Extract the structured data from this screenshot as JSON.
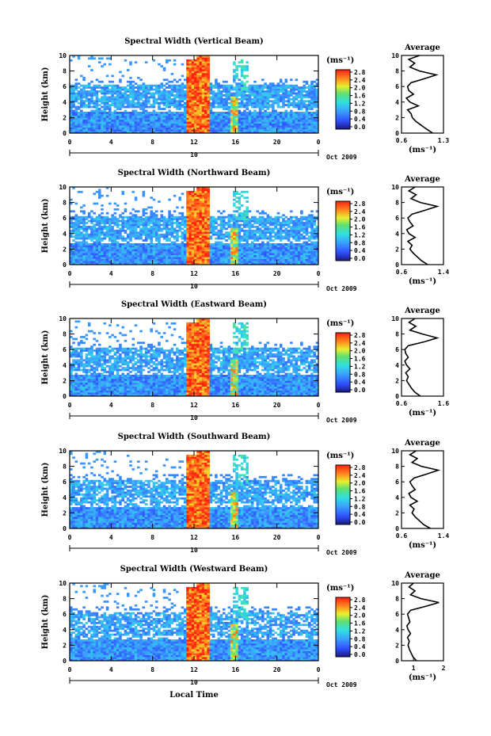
{
  "chart_data": [
    {
      "type": "heatmap",
      "title": "Spectral Width (Vertical Beam)",
      "ylabel": "Height (km)",
      "x_ticks": [
        "0",
        "4",
        "8",
        "12",
        "16",
        "20",
        "0"
      ],
      "y_ticks": [
        "0",
        "2",
        "4",
        "6",
        "8",
        "10"
      ],
      "xlim": [
        0,
        24
      ],
      "ylim": [
        0,
        10
      ],
      "date_label": "10",
      "month_year": "Oct 2009",
      "colorbar": {
        "unit": "(ms⁻¹)",
        "ticks": [
          "0.0",
          "0.4",
          "0.8",
          "1.2",
          "1.6",
          "2.0",
          "2.4",
          "2.8"
        ],
        "range": [
          0,
          3.0
        ]
      },
      "profile": {
        "title": "Average",
        "xlabel": "(ms⁻¹)",
        "xlim": [
          0.6,
          1.3
        ],
        "x_ticks": [
          "0.6",
          "1.3"
        ],
        "heights": [
          0,
          0.5,
          1,
          1.5,
          2,
          2.5,
          3,
          3.5,
          4,
          4.5,
          5,
          5.5,
          6,
          6.5,
          7,
          7.5,
          8,
          8.5,
          9,
          9.5,
          10
        ],
        "values": [
          1.12,
          1.02,
          0.93,
          0.84,
          0.78,
          0.76,
          0.7,
          0.88,
          0.74,
          0.68,
          0.8,
          0.72,
          0.7,
          0.76,
          0.98,
          1.18,
          0.9,
          0.74,
          0.82,
          0.72,
          0.9
        ]
      }
    },
    {
      "type": "heatmap",
      "title": "Spectral Width (Northward Beam)",
      "ylabel": "Height (km)",
      "x_ticks": [
        "0",
        "4",
        "8",
        "12",
        "16",
        "20",
        "0"
      ],
      "y_ticks": [
        "0",
        "2",
        "4",
        "6",
        "8",
        "10"
      ],
      "xlim": [
        0,
        24
      ],
      "ylim": [
        0,
        10
      ],
      "date_label": "10",
      "month_year": "Oct 2009",
      "colorbar": {
        "unit": "(ms⁻¹)",
        "ticks": [
          "0.0",
          "0.4",
          "0.8",
          "1.2",
          "1.6",
          "2.0",
          "2.4",
          "2.8"
        ],
        "range": [
          0,
          3.0
        ]
      },
      "profile": {
        "title": "Average",
        "xlabel": "(ms⁻¹)",
        "xlim": [
          0.6,
          1.4
        ],
        "x_ticks": [
          "0.6",
          "1.4"
        ],
        "heights": [
          0,
          0.5,
          1,
          1.5,
          2,
          2.5,
          3,
          3.5,
          4,
          4.5,
          5,
          5.5,
          6,
          6.5,
          7,
          7.5,
          8,
          8.5,
          9,
          9.5,
          10
        ],
        "values": [
          1.1,
          0.98,
          0.9,
          0.82,
          0.76,
          0.8,
          0.72,
          0.86,
          0.74,
          0.7,
          0.82,
          0.76,
          0.72,
          0.8,
          1.05,
          1.28,
          0.96,
          0.78,
          0.88,
          0.74,
          0.86
        ]
      }
    },
    {
      "type": "heatmap",
      "title": "Spectral Width (Eastward Beam)",
      "ylabel": "Height (km)",
      "x_ticks": [
        "0",
        "4",
        "8",
        "12",
        "16",
        "20",
        "0"
      ],
      "y_ticks": [
        "0",
        "2",
        "4",
        "6",
        "8",
        "10"
      ],
      "xlim": [
        0,
        24
      ],
      "ylim": [
        0,
        10
      ],
      "date_label": "10",
      "month_year": "Oct 2009",
      "colorbar": {
        "unit": "(ms⁻¹)",
        "ticks": [
          "0.0",
          "0.4",
          "0.8",
          "1.2",
          "1.6",
          "2.0",
          "2.4",
          "2.8"
        ],
        "range": [
          0,
          3.0
        ]
      },
      "profile": {
        "title": "Average",
        "xlabel": "(ms⁻¹)",
        "xlim": [
          0.6,
          1.6
        ],
        "x_ticks": [
          "0.6",
          "1.6"
        ],
        "heights": [
          0,
          0.5,
          1,
          1.5,
          2,
          2.5,
          3,
          3.5,
          4,
          4.5,
          5,
          5.5,
          6,
          6.5,
          7,
          7.5,
          8,
          8.5,
          9,
          9.5,
          10
        ],
        "values": [
          1.05,
          0.92,
          0.84,
          0.78,
          0.72,
          0.76,
          0.7,
          0.8,
          0.72,
          0.68,
          0.76,
          0.7,
          0.68,
          0.76,
          1.15,
          1.45,
          1.1,
          0.8,
          0.94,
          0.78,
          0.92
        ]
      }
    },
    {
      "type": "heatmap",
      "title": "Spectral Width (Southward Beam)",
      "ylabel": "Height (km)",
      "x_ticks": [
        "0",
        "4",
        "8",
        "12",
        "16",
        "20",
        "0"
      ],
      "y_ticks": [
        "0",
        "2",
        "4",
        "6",
        "8",
        "10"
      ],
      "xlim": [
        0,
        24
      ],
      "ylim": [
        0,
        10
      ],
      "date_label": "10",
      "month_year": "Oct 2009",
      "colorbar": {
        "unit": "(ms⁻¹)",
        "ticks": [
          "0.0",
          "0.4",
          "0.8",
          "1.2",
          "1.6",
          "2.0",
          "2.4",
          "2.8"
        ],
        "range": [
          0,
          3.0
        ]
      },
      "profile": {
        "title": "Average",
        "xlabel": "(ms⁻¹)",
        "xlim": [
          0.6,
          1.4
        ],
        "x_ticks": [
          "0.6",
          "1.4"
        ],
        "heights": [
          0,
          0.5,
          1,
          1.5,
          2,
          2.5,
          3,
          3.5,
          4,
          4.5,
          5,
          5.5,
          6,
          6.5,
          7,
          7.5,
          8,
          8.5,
          9,
          9.5,
          10
        ],
        "values": [
          1.15,
          1.02,
          0.94,
          0.86,
          0.8,
          0.84,
          0.76,
          0.9,
          0.78,
          0.74,
          0.86,
          0.8,
          0.76,
          0.84,
          1.08,
          1.3,
          0.98,
          0.8,
          0.9,
          0.76,
          0.88
        ]
      }
    },
    {
      "type": "heatmap",
      "title": "Spectral Width (Westward Beam)",
      "ylabel": "Height (km)",
      "xlabel": "Local Time",
      "x_ticks": [
        "0",
        "4",
        "8",
        "12",
        "16",
        "20",
        "0"
      ],
      "y_ticks": [
        "0",
        "2",
        "4",
        "6",
        "8",
        "10"
      ],
      "xlim": [
        0,
        24
      ],
      "ylim": [
        0,
        10
      ],
      "date_label": "10",
      "month_year": "Oct 2009",
      "colorbar": {
        "unit": "(ms⁻¹)",
        "ticks": [
          "0.0",
          "0.4",
          "0.8",
          "1.2",
          "1.6",
          "2.0",
          "2.4",
          "2.8"
        ],
        "range": [
          0,
          3.0
        ]
      },
      "profile": {
        "title": "Average",
        "xlabel": "(ms⁻¹)",
        "xlim": [
          0.6,
          2.0
        ],
        "x_ticks": [
          "1",
          "2"
        ],
        "heights": [
          0,
          0.5,
          1,
          1.5,
          2,
          2.5,
          3,
          3.5,
          4,
          4.5,
          5,
          5.5,
          6,
          6.5,
          7,
          7.5,
          8,
          8.5,
          9,
          9.5,
          10
        ],
        "values": [
          1.1,
          0.98,
          0.92,
          0.86,
          0.82,
          0.86,
          0.8,
          0.9,
          0.82,
          0.78,
          0.88,
          0.84,
          0.8,
          0.9,
          1.4,
          1.85,
          1.25,
          0.9,
          1.05,
          0.85,
          1.0
        ]
      }
    }
  ]
}
